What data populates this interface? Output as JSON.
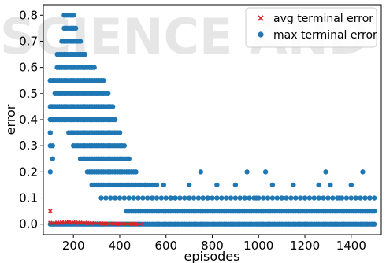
{
  "watermark": {
    "line1": "SCIENCE AND TECH"
  },
  "chart_data": {
    "type": "scatter",
    "xlabel": "episodes",
    "ylabel": "error",
    "xlim": [
      70,
      1530
    ],
    "ylim": [
      -0.04,
      0.84
    ],
    "xticks": [
      200,
      400,
      600,
      800,
      1000,
      1200,
      1400
    ],
    "xtick_labels": [
      "200",
      "400",
      "600",
      "800",
      "1000",
      "1200",
      "1400"
    ],
    "yticks": [
      0.0,
      0.1,
      0.2,
      0.3,
      0.4,
      0.5,
      0.6,
      0.7,
      0.8
    ],
    "ytick_labels": [
      "0.0",
      "0.1",
      "0.2",
      "0.3",
      "0.4",
      "0.5",
      "0.6",
      "0.7",
      "0.8"
    ],
    "grid": false,
    "legend_position": "top-right",
    "series": [
      {
        "name": "avg terminal error",
        "marker": "x",
        "color": "#d62728",
        "points": [
          [
            100,
            0.05
          ],
          [
            100,
            0.005
          ],
          [
            110,
            0.003
          ],
          [
            120,
            0.004
          ],
          [
            130,
            0.006
          ],
          [
            140,
            0.005
          ],
          [
            150,
            0.007
          ],
          [
            160,
            0.006
          ],
          [
            170,
            0.008
          ],
          [
            180,
            0.007
          ],
          [
            190,
            0.006
          ],
          [
            200,
            0.007
          ],
          [
            210,
            0.006
          ],
          [
            220,
            0.005
          ],
          [
            230,
            0.006
          ],
          [
            240,
            0.005
          ],
          [
            250,
            0.005
          ],
          [
            260,
            0.004
          ],
          [
            270,
            0.004
          ],
          [
            280,
            0.004
          ],
          [
            290,
            0.003
          ],
          [
            300,
            0.003
          ],
          [
            310,
            0.003
          ],
          [
            320,
            0.003
          ],
          [
            330,
            0.002
          ],
          [
            340,
            0.002
          ],
          [
            350,
            0.002
          ],
          [
            360,
            0.002
          ],
          [
            370,
            0.002
          ],
          [
            380,
            0.001
          ],
          [
            390,
            0.001
          ],
          [
            400,
            0.001
          ],
          [
            410,
            0.001
          ],
          [
            420,
            0.001
          ],
          [
            430,
            0.001
          ],
          [
            440,
            0.001
          ],
          [
            450,
            0.001
          ],
          [
            460,
            0.001
          ],
          [
            470,
            0.001
          ],
          [
            480,
            0.0
          ],
          [
            490,
            0.0
          ]
        ]
      },
      {
        "name": "max terminal error",
        "marker": "o",
        "color": "#1f77b4",
        "description": "dense band of points, columns per 0.05 level",
        "bands": [
          {
            "y": 0.0,
            "x_from": 100,
            "x_to": 1500
          },
          {
            "y": 0.05,
            "x_from": 430,
            "x_to": 1500
          },
          {
            "y": 0.1,
            "x_from": 320,
            "x_to": 1500,
            "sparse": true
          },
          {
            "y": 0.15,
            "x_from": 280,
            "x_to": 560
          },
          {
            "y": 0.2,
            "x_from": 260,
            "x_to": 470
          },
          {
            "y": 0.25,
            "x_from": 230,
            "x_to": 440
          },
          {
            "y": 0.3,
            "x_from": 200,
            "x_to": 420
          },
          {
            "y": 0.35,
            "x_from": 180,
            "x_to": 400
          },
          {
            "y": 0.4,
            "x_from": 100,
            "x_to": 380
          },
          {
            "y": 0.45,
            "x_from": 100,
            "x_to": 370
          },
          {
            "y": 0.5,
            "x_from": 120,
            "x_to": 350
          },
          {
            "y": 0.55,
            "x_from": 100,
            "x_to": 330
          },
          {
            "y": 0.6,
            "x_from": 130,
            "x_to": 290
          },
          {
            "y": 0.65,
            "x_from": 130,
            "x_to": 250
          },
          {
            "y": 0.7,
            "x_from": 150,
            "x_to": 230
          },
          {
            "y": 0.75,
            "x_from": 160,
            "x_to": 210
          },
          {
            "y": 0.8,
            "x_from": 160,
            "x_to": 205
          }
        ],
        "outliers": [
          [
            100,
            0.2
          ],
          [
            100,
            0.3
          ],
          [
            110,
            0.3
          ],
          [
            100,
            0.35
          ],
          [
            100,
            0.4
          ],
          [
            110,
            0.25
          ],
          [
            100,
            0.55
          ],
          [
            105,
            0.45
          ],
          [
            510,
            0.15
          ],
          [
            540,
            0.1
          ],
          [
            590,
            0.15
          ],
          [
            620,
            0.1
          ],
          [
            640,
            0.1
          ],
          [
            700,
            0.15
          ],
          [
            750,
            0.2
          ],
          [
            760,
            0.1
          ],
          [
            780,
            0.1
          ],
          [
            820,
            0.15
          ],
          [
            900,
            0.15
          ],
          [
            950,
            0.2
          ],
          [
            990,
            0.1
          ],
          [
            1030,
            0.2
          ],
          [
            1060,
            0.15
          ],
          [
            1100,
            0.1
          ],
          [
            1150,
            0.15
          ],
          [
            1200,
            0.1
          ],
          [
            1260,
            0.15
          ],
          [
            1290,
            0.2
          ],
          [
            1310,
            0.15
          ],
          [
            1350,
            0.1
          ],
          [
            1400,
            0.15
          ],
          [
            1450,
            0.2
          ],
          [
            1480,
            0.1
          ]
        ]
      }
    ]
  }
}
